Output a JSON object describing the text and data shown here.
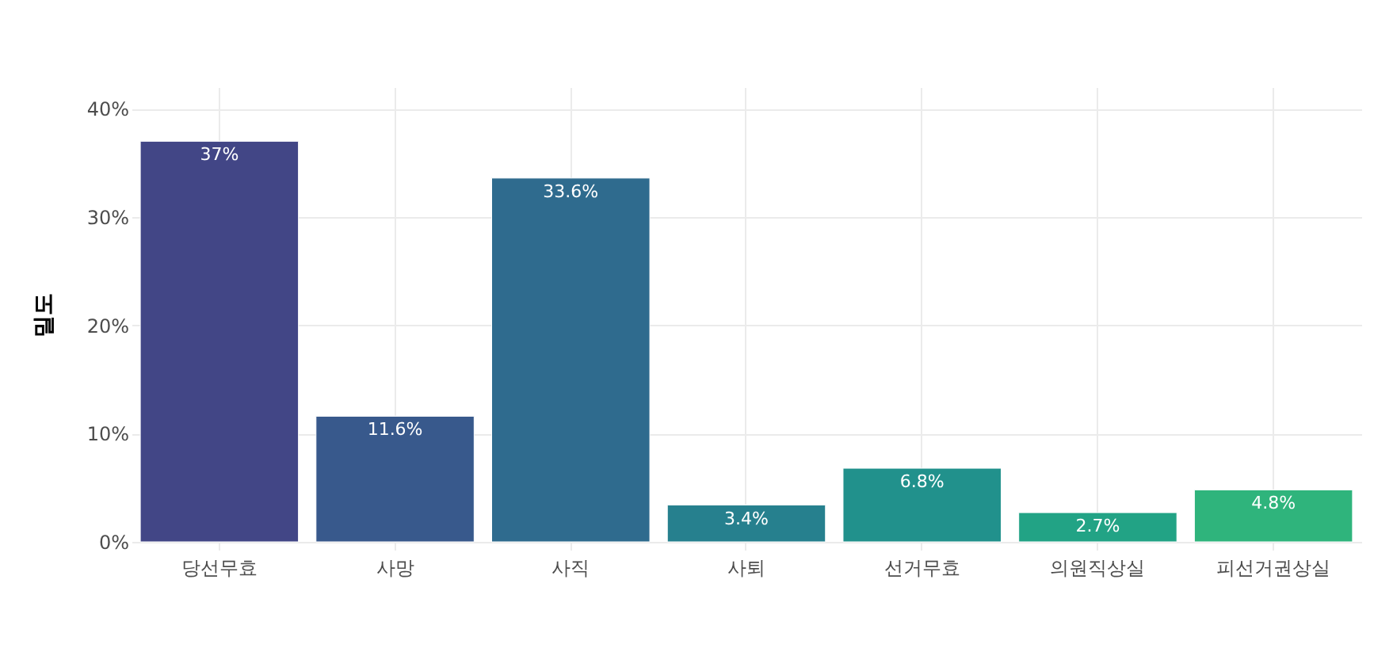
{
  "chart_data": {
    "type": "bar",
    "ylabel": "밀도",
    "categories": [
      "당선무효",
      "사망",
      "사직",
      "사퇴",
      "선거무효",
      "의원직상실",
      "피선거권상실"
    ],
    "values": [
      37,
      11.6,
      33.6,
      3.4,
      6.8,
      2.7,
      4.8
    ],
    "colors": [
      "#424686",
      "#38598c",
      "#2f6b8e",
      "#26808e",
      "#21918c",
      "#22a385",
      "#2fb47c"
    ],
    "value_labels": [
      "37%",
      "11.6%",
      "33.6%",
      "3.4%",
      "6.8%",
      "2.7%",
      "4.8%"
    ],
    "ylim": [
      0,
      42
    ],
    "yticks": [
      {
        "value": 0,
        "label": "0%"
      },
      {
        "value": 10,
        "label": "10%"
      },
      {
        "value": 20,
        "label": "20%"
      },
      {
        "value": 30,
        "label": "30%"
      },
      {
        "value": 40,
        "label": "40%"
      }
    ],
    "grid": true
  }
}
